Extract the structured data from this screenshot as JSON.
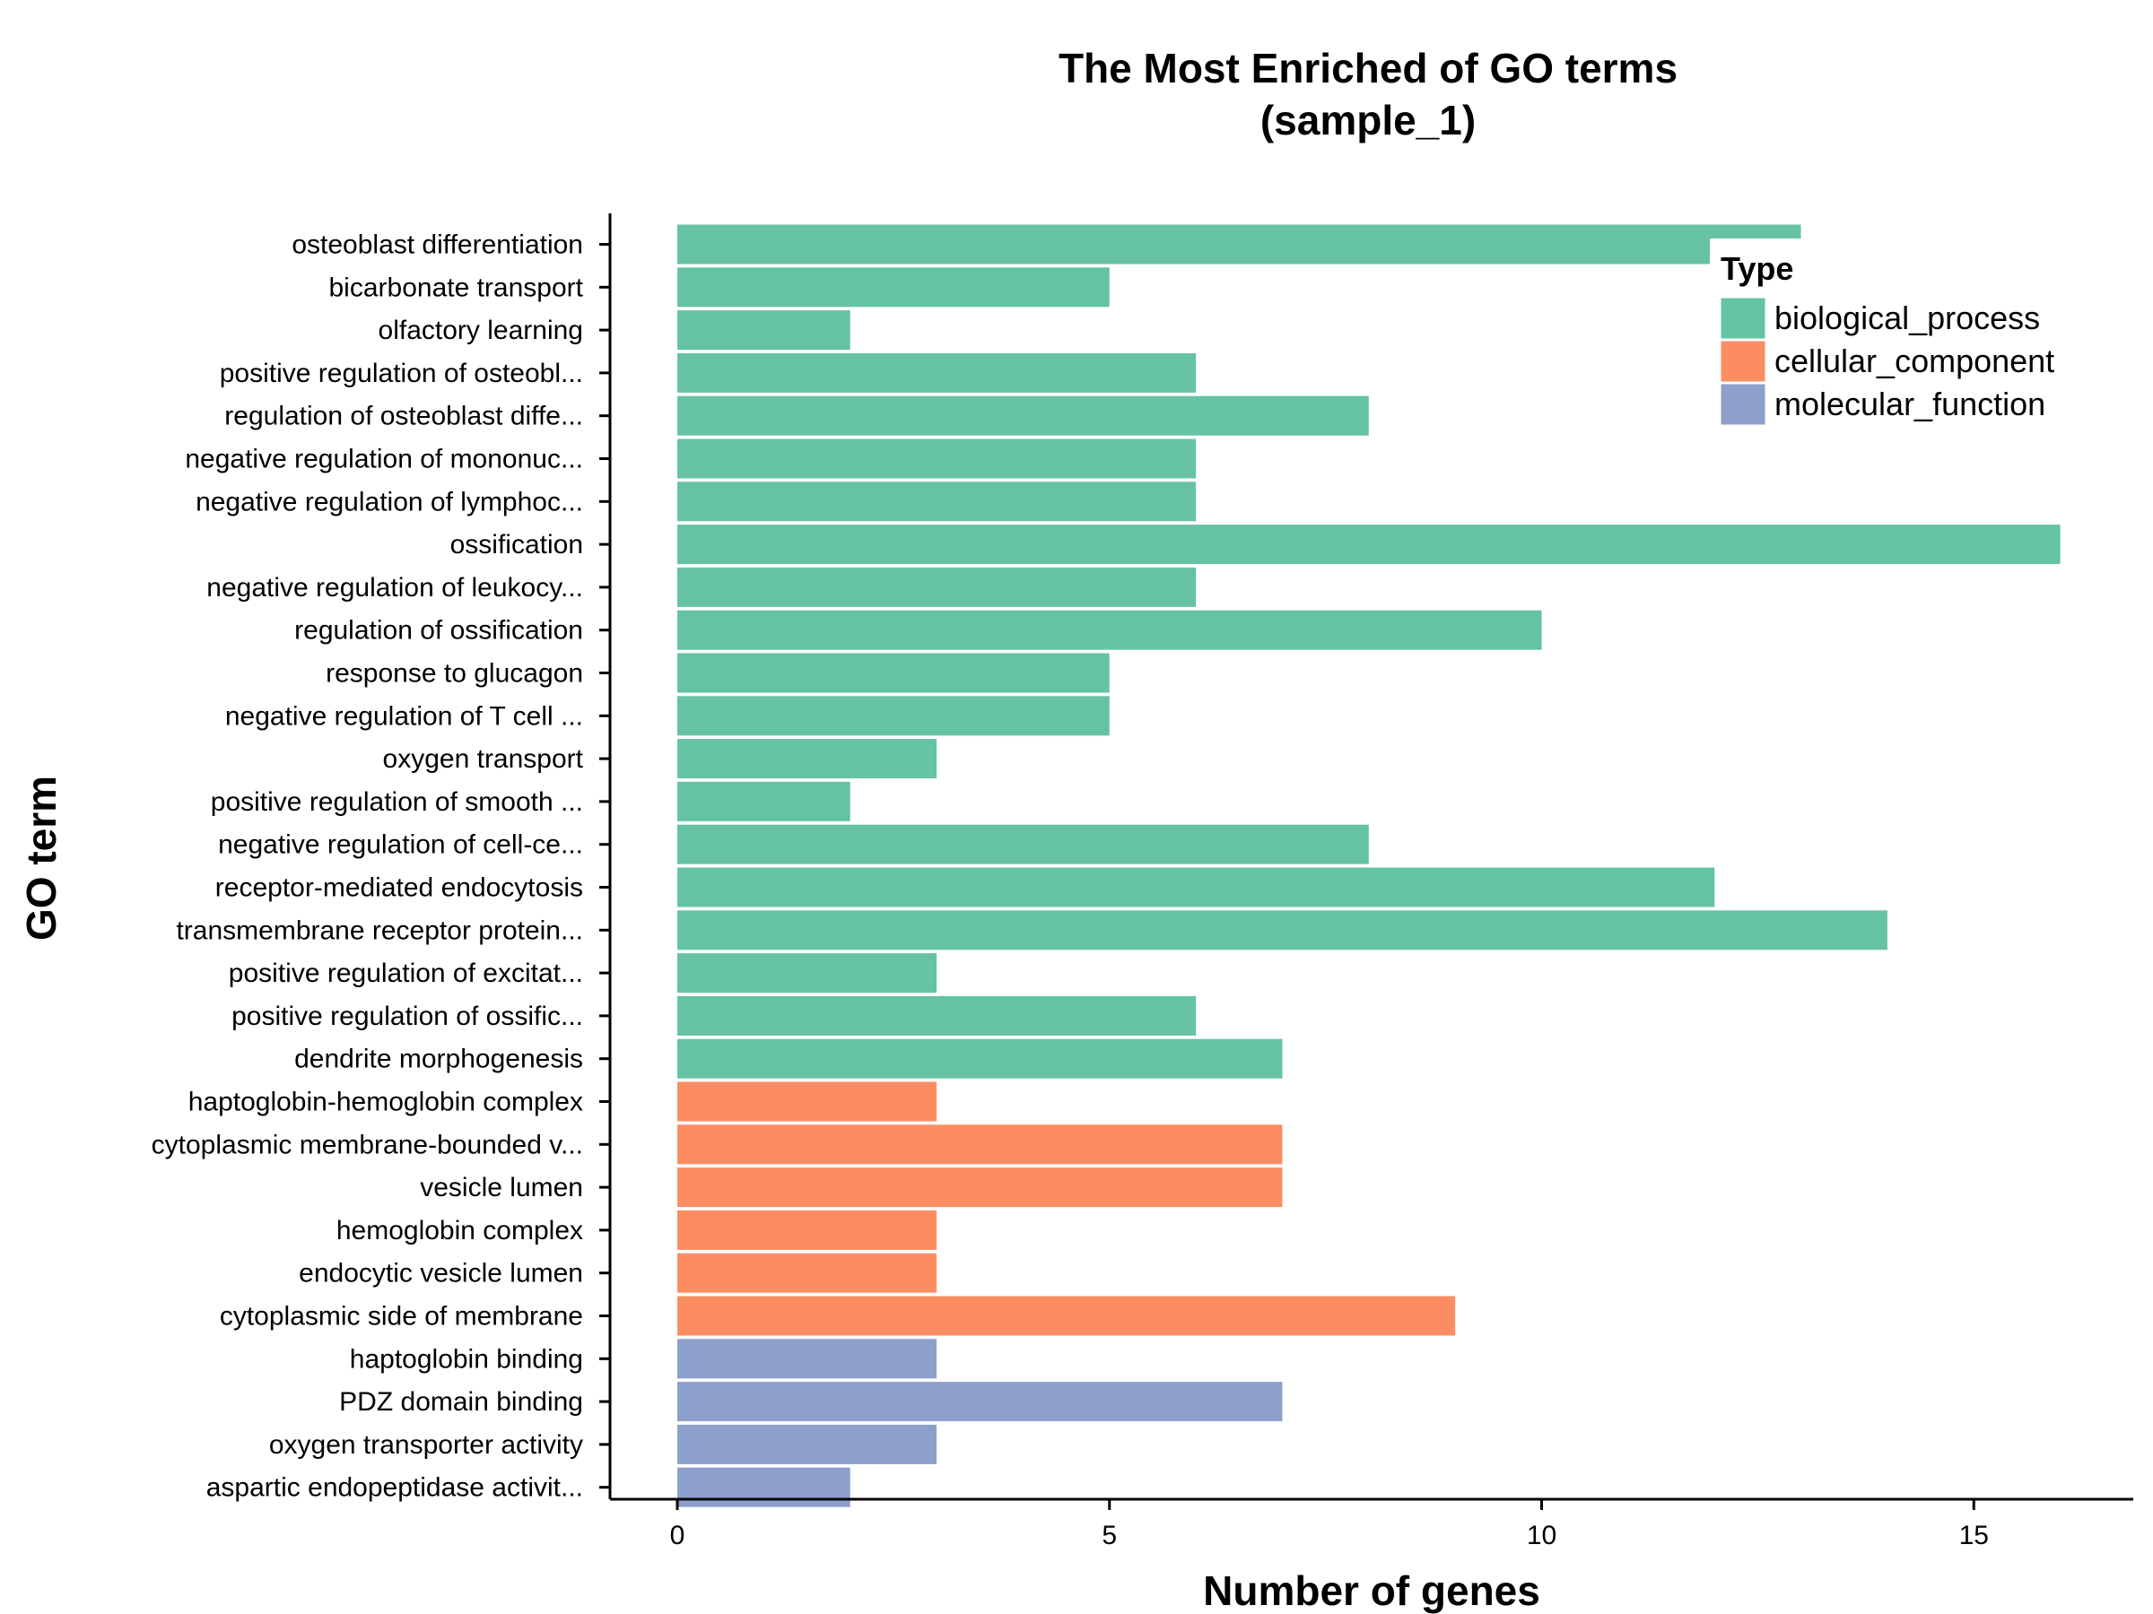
{
  "chart_data": {
    "type": "bar",
    "orientation": "horizontal",
    "title": "The Most Enriched of GO terms",
    "subtitle": "(sample_1)",
    "xlabel": "Number of genes",
    "ylabel": "GO term",
    "xlim": [
      -0.8,
      16.8
    ],
    "xticks": [
      0,
      5,
      10,
      15
    ],
    "grid": false,
    "legend": {
      "title": "Type",
      "placement": "top-right",
      "entries": [
        {
          "name": "biological_process",
          "color": "#66C2A5"
        },
        {
          "name": "cellular_component",
          "color": "#FC8D62"
        },
        {
          "name": "molecular_function",
          "color": "#8DA0CB"
        }
      ]
    },
    "bars": [
      {
        "term": "osteoblast differentiation",
        "value": 13,
        "type": "biological_process"
      },
      {
        "term": "bicarbonate transport",
        "value": 5,
        "type": "biological_process"
      },
      {
        "term": "olfactory learning",
        "value": 2,
        "type": "biological_process"
      },
      {
        "term": "positive regulation of osteobl...",
        "value": 6,
        "type": "biological_process"
      },
      {
        "term": "regulation of osteoblast diffe...",
        "value": 8,
        "type": "biological_process"
      },
      {
        "term": "negative regulation of mononuc...",
        "value": 6,
        "type": "biological_process"
      },
      {
        "term": "negative regulation of lymphoc...",
        "value": 6,
        "type": "biological_process"
      },
      {
        "term": "ossification",
        "value": 16,
        "type": "biological_process"
      },
      {
        "term": "negative regulation of leukocy...",
        "value": 6,
        "type": "biological_process"
      },
      {
        "term": "regulation of ossification",
        "value": 10,
        "type": "biological_process"
      },
      {
        "term": "response to glucagon",
        "value": 5,
        "type": "biological_process"
      },
      {
        "term": "negative regulation of T cell ...",
        "value": 5,
        "type": "biological_process"
      },
      {
        "term": "oxygen transport",
        "value": 3,
        "type": "biological_process"
      },
      {
        "term": "positive regulation of smooth ...",
        "value": 2,
        "type": "biological_process"
      },
      {
        "term": "negative regulation of cell-ce...",
        "value": 8,
        "type": "biological_process"
      },
      {
        "term": "receptor-mediated endocytosis",
        "value": 12,
        "type": "biological_process"
      },
      {
        "term": "transmembrane receptor protein...",
        "value": 14,
        "type": "biological_process"
      },
      {
        "term": "positive regulation of excitat...",
        "value": 3,
        "type": "biological_process"
      },
      {
        "term": "positive regulation of ossific...",
        "value": 6,
        "type": "biological_process"
      },
      {
        "term": "dendrite morphogenesis",
        "value": 7,
        "type": "biological_process"
      },
      {
        "term": "haptoglobin-hemoglobin complex",
        "value": 3,
        "type": "cellular_component"
      },
      {
        "term": "cytoplasmic membrane-bounded v...",
        "value": 7,
        "type": "cellular_component"
      },
      {
        "term": "vesicle lumen",
        "value": 7,
        "type": "cellular_component"
      },
      {
        "term": "hemoglobin complex",
        "value": 3,
        "type": "cellular_component"
      },
      {
        "term": "endocytic vesicle lumen",
        "value": 3,
        "type": "cellular_component"
      },
      {
        "term": "cytoplasmic side of membrane",
        "value": 9,
        "type": "cellular_component"
      },
      {
        "term": "haptoglobin binding",
        "value": 3,
        "type": "molecular_function"
      },
      {
        "term": "PDZ domain binding",
        "value": 7,
        "type": "molecular_function"
      },
      {
        "term": "oxygen transporter activity",
        "value": 3,
        "type": "molecular_function"
      },
      {
        "term": "aspartic endopeptidase activit...",
        "value": 2,
        "type": "molecular_function"
      }
    ]
  }
}
